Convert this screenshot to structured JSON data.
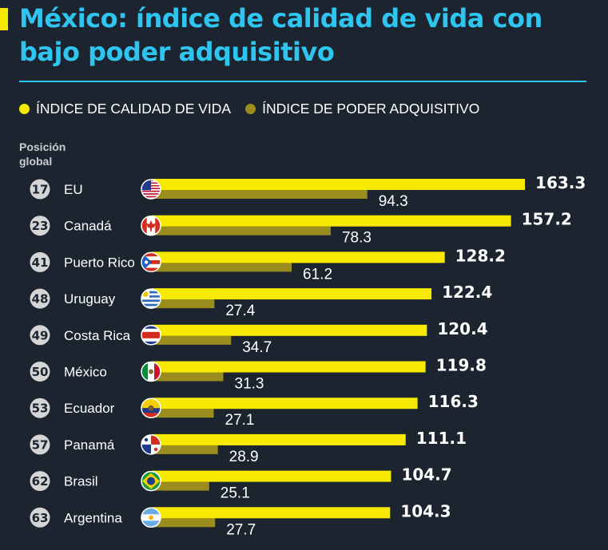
{
  "title": "México: índice de calidad de vida con bajo poder adquisitivo",
  "legend": {
    "quality": "ÍNDICE DE CALIDAD DE VIDA",
    "purchasing": "ÍNDICE DE PODER ADQUISITIVO"
  },
  "position_header": "Posición global",
  "colors": {
    "background": "#1c2430",
    "title": "#2fc5f1",
    "quality_bar": "#f7ea00",
    "purchasing_bar": "#9a8d1e",
    "rank_circle": "#d5d5d5"
  },
  "chart_data": {
    "type": "bar",
    "orientation": "horizontal",
    "categories": [
      "EU",
      "Canadá",
      "Puerto Rico",
      "Uruguay",
      "Costa Rica",
      "México",
      "Ecuador",
      "Panamá",
      "Brasil",
      "Argentina"
    ],
    "ranks": [
      "17",
      "23",
      "41",
      "48",
      "49",
      "50",
      "53",
      "57",
      "62",
      "63"
    ],
    "flags": [
      "usa-flag-icon",
      "canada-flag-icon",
      "puerto-rico-flag-icon",
      "uruguay-flag-icon",
      "costa-rica-flag-icon",
      "mexico-flag-icon",
      "ecuador-flag-icon",
      "panama-flag-icon",
      "brazil-flag-icon",
      "argentina-flag-icon"
    ],
    "series": [
      {
        "name": "ÍNDICE DE CALIDAD DE VIDA",
        "values": [
          163.3,
          157.2,
          128.2,
          122.4,
          120.4,
          119.8,
          116.3,
          111.1,
          104.7,
          104.3
        ]
      },
      {
        "name": "ÍNDICE DE PODER ADQUISITIVO",
        "values": [
          94.3,
          78.3,
          61.2,
          27.4,
          34.7,
          31.3,
          27.1,
          28.9,
          25.1,
          27.7
        ]
      }
    ],
    "legend_position": "top-left",
    "grid": false
  }
}
